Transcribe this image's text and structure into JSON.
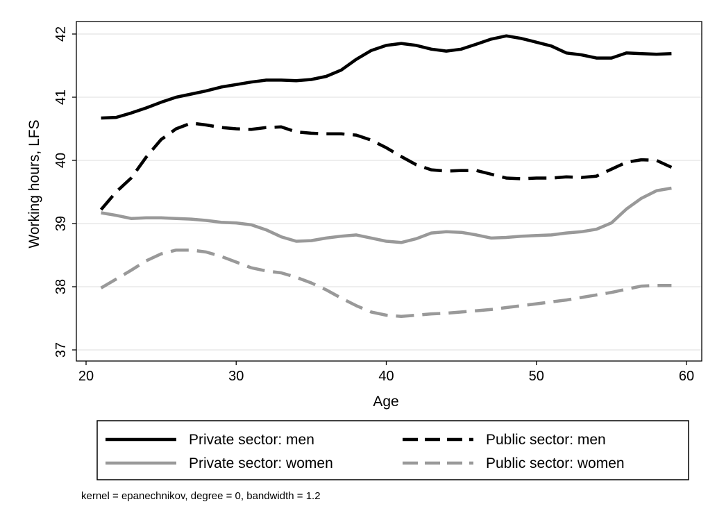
{
  "chart_data": {
    "type": "line",
    "xlabel": "Age",
    "ylabel": "Working hours, LFS",
    "xlim": [
      20,
      60
    ],
    "ylim": [
      37,
      42
    ],
    "xticks": [
      20,
      30,
      40,
      50,
      60
    ],
    "yticks": [
      37,
      38,
      39,
      40,
      41,
      42
    ],
    "grid": "horizontal",
    "legend_position": "bottom",
    "note": "kernel = epanechnikov, degree = 0, bandwidth = 1.2",
    "series": [
      {
        "name": "Private sector: men",
        "color": "#000000",
        "dash": "solid",
        "x": [
          21,
          22,
          23,
          24,
          25,
          26,
          27,
          28,
          29,
          30,
          31,
          32,
          33,
          34,
          35,
          36,
          37,
          38,
          39,
          40,
          41,
          42,
          43,
          44,
          45,
          46,
          47,
          48,
          49,
          50,
          51,
          52,
          53,
          54,
          55,
          56,
          57,
          58,
          59
        ],
        "y": [
          40.67,
          40.68,
          40.75,
          40.83,
          40.92,
          41.0,
          41.05,
          41.1,
          41.16,
          41.2,
          41.24,
          41.27,
          41.27,
          41.26,
          41.28,
          41.33,
          41.43,
          41.6,
          41.74,
          41.82,
          41.85,
          41.82,
          41.76,
          41.73,
          41.76,
          41.84,
          41.92,
          41.97,
          41.93,
          41.87,
          41.81,
          41.7,
          41.67,
          41.62,
          41.62,
          41.7,
          41.69,
          41.68,
          41.69
        ]
      },
      {
        "name": "Public sector: men",
        "color": "#000000",
        "dash": "dashed",
        "x": [
          21,
          22,
          23,
          24,
          25,
          26,
          27,
          28,
          29,
          30,
          31,
          32,
          33,
          34,
          35,
          36,
          37,
          38,
          39,
          40,
          41,
          42,
          43,
          44,
          45,
          46,
          47,
          48,
          49,
          50,
          51,
          52,
          53,
          54,
          55,
          56,
          57,
          58,
          59
        ],
        "y": [
          39.22,
          39.5,
          39.72,
          40.05,
          40.33,
          40.5,
          40.59,
          40.56,
          40.52,
          40.5,
          40.49,
          40.52,
          40.53,
          40.45,
          40.43,
          40.42,
          40.42,
          40.4,
          40.32,
          40.2,
          40.06,
          39.93,
          39.85,
          39.83,
          39.84,
          39.84,
          39.78,
          39.72,
          39.71,
          39.72,
          39.72,
          39.74,
          39.73,
          39.75,
          39.86,
          39.97,
          40.01,
          40.0,
          39.89
        ]
      },
      {
        "name": "Private sector: women",
        "color": "#999999",
        "dash": "solid",
        "x": [
          21,
          22,
          23,
          24,
          25,
          26,
          27,
          28,
          29,
          30,
          31,
          32,
          33,
          34,
          35,
          36,
          37,
          38,
          39,
          40,
          41,
          42,
          43,
          44,
          45,
          46,
          47,
          48,
          49,
          50,
          51,
          52,
          53,
          54,
          55,
          56,
          57,
          58,
          59
        ],
        "y": [
          39.17,
          39.13,
          39.08,
          39.09,
          39.09,
          39.08,
          39.07,
          39.05,
          39.02,
          39.01,
          38.98,
          38.9,
          38.79,
          38.72,
          38.73,
          38.77,
          38.8,
          38.82,
          38.77,
          38.72,
          38.7,
          38.76,
          38.85,
          38.87,
          38.86,
          38.82,
          38.77,
          38.78,
          38.8,
          38.81,
          38.82,
          38.85,
          38.87,
          38.91,
          39.01,
          39.23,
          39.4,
          39.52,
          39.56
        ]
      },
      {
        "name": "Public sector: women",
        "color": "#999999",
        "dash": "dashed",
        "x": [
          21,
          22,
          23,
          24,
          25,
          26,
          27,
          28,
          29,
          30,
          31,
          32,
          33,
          34,
          35,
          36,
          37,
          38,
          39,
          40,
          41,
          42,
          43,
          44,
          45,
          46,
          47,
          48,
          49,
          50,
          51,
          52,
          53,
          54,
          55,
          56,
          57,
          58,
          59
        ],
        "y": [
          37.98,
          38.12,
          38.26,
          38.41,
          38.52,
          38.58,
          38.58,
          38.55,
          38.48,
          38.39,
          38.3,
          38.25,
          38.22,
          38.15,
          38.06,
          37.95,
          37.82,
          37.7,
          37.6,
          37.55,
          37.53,
          37.55,
          37.57,
          37.58,
          37.6,
          37.62,
          37.64,
          37.67,
          37.7,
          37.73,
          37.76,
          37.79,
          37.83,
          37.87,
          37.91,
          37.96,
          38.01,
          38.02,
          38.02
        ]
      }
    ]
  }
}
